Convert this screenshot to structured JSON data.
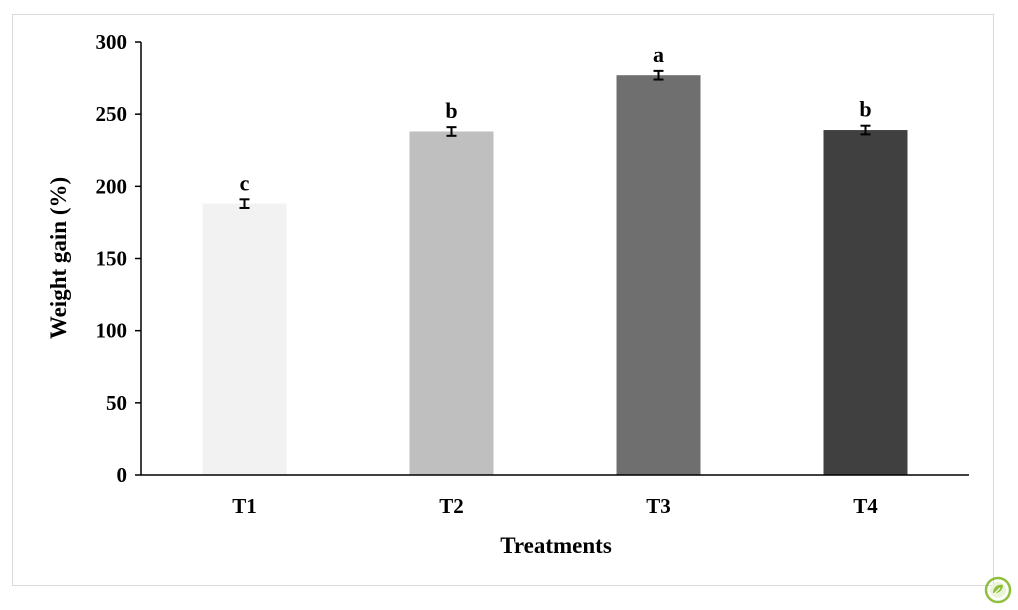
{
  "chart_data": {
    "type": "bar",
    "categories": [
      "T1",
      "T2",
      "T3",
      "T4"
    ],
    "values": [
      188,
      238,
      277,
      239
    ],
    "errors": [
      3,
      3,
      3,
      3
    ],
    "significance_letters": [
      "c",
      "b",
      "a",
      "b"
    ],
    "bar_colors": [
      "#f2f2f2",
      "#bfbfbf",
      "#6f6f6f",
      "#404040"
    ],
    "xlabel": "Treatments",
    "ylabel": "Weight gain (%)",
    "ylim": [
      0,
      300
    ],
    "yticks": [
      0,
      50,
      100,
      150,
      200,
      250,
      300
    ],
    "grid": false,
    "legend": "none"
  },
  "logo": {
    "icon": "leaf-badge-icon",
    "color": "#8fbf3f"
  }
}
